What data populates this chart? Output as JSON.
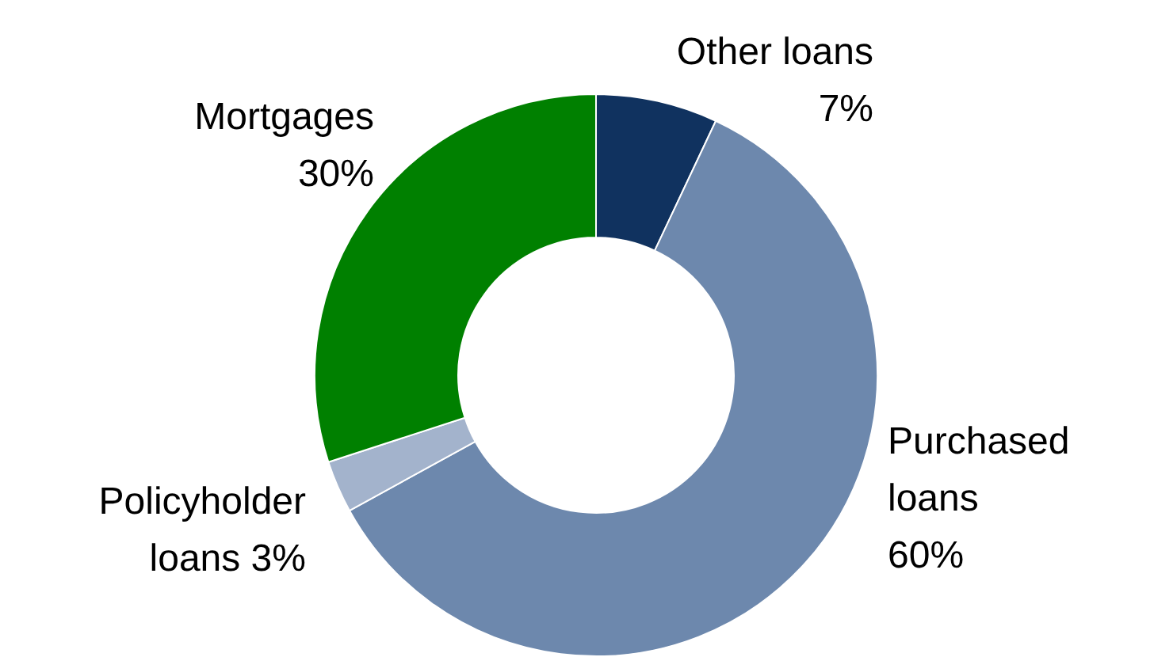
{
  "chart_data": {
    "type": "donut",
    "categories": [
      "Other loans",
      "Purchased loans",
      "Policyholder loans",
      "Mortgages"
    ],
    "values": [
      7,
      60,
      3,
      30
    ],
    "colors": [
      "#10325f",
      "#6d88ad",
      "#a3b3cc",
      "#008000"
    ],
    "value_labels": [
      "7%",
      "60%",
      "3%",
      "30%"
    ]
  }
}
